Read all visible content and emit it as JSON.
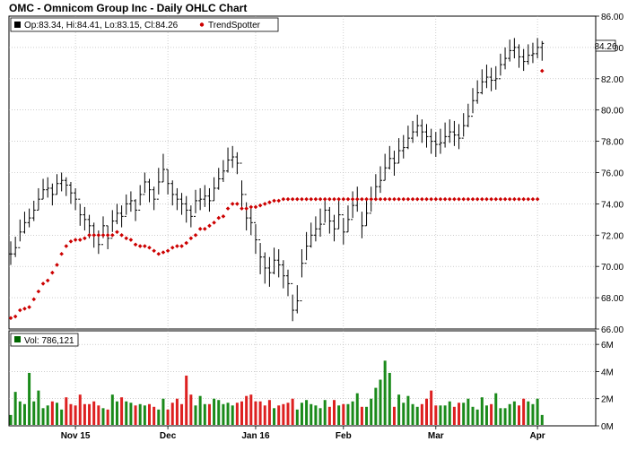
{
  "chart_data": {
    "type": "ohlc",
    "title": "OMC - Omnicom Group Inc - Daily OHLC Chart",
    "legend": {
      "ohlc_label": "Op:83.34, Hi:84.41, Lo:83.15, Cl:84.26",
      "trend_label": "TrendSpotter",
      "volume_label": "Vol: 786,121"
    },
    "last_price_label": "84.26",
    "price_axis": {
      "min": 66,
      "max": 86,
      "ticks": [
        "86.00",
        "84.00",
        "82.00",
        "80.00",
        "78.00",
        "76.00",
        "74.00",
        "72.00",
        "70.00",
        "68.00",
        "66.00"
      ]
    },
    "volume_axis": {
      "min": 0,
      "max": 7000000,
      "ticks": [
        {
          "label": "6M",
          "value": 6000000
        },
        {
          "label": "4M",
          "value": 4000000
        },
        {
          "label": "2M",
          "value": 2000000
        },
        {
          "label": "0M",
          "value": 0
        }
      ]
    },
    "date_labels": [
      {
        "label": "Nov 15",
        "index": 14
      },
      {
        "label": "Dec",
        "index": 34
      },
      {
        "label": "Jan 16",
        "index": 53
      },
      {
        "label": "Feb",
        "index": 72
      },
      {
        "label": "Mar",
        "index": 92
      },
      {
        "label": "Apr",
        "index": 114
      }
    ],
    "colors": {
      "up_volume": "#1a8a1a",
      "down_volume": "#dd2020",
      "trend": "#cc0000",
      "price_bar": "#000000",
      "volume_legend_marker": "#006600"
    },
    "series": {
      "close": [
        70.8,
        71.2,
        72.2,
        72.8,
        73.1,
        73.6,
        74.3,
        74.9,
        75.0,
        74.6,
        75.3,
        75.5,
        75.2,
        74.7,
        74.3,
        73.3,
        73.0,
        72.6,
        72.0,
        71.4,
        72.6,
        71.8,
        72.9,
        73.4,
        73.2,
        74.0,
        74.2,
        73.6,
        74.6,
        75.4,
        74.9,
        74.3,
        75.4,
        76.2,
        75.3,
        74.6,
        74.3,
        74.0,
        73.6,
        73.2,
        74.2,
        74.3,
        74.5,
        74.2,
        75.0,
        75.6,
        76.1,
        76.8,
        77.0,
        76.6,
        74.6,
        73.1,
        72.8,
        71.7,
        70.6,
        69.9,
        69.6,
        70.4,
        70.1,
        69.4,
        68.9,
        67.2,
        67.8,
        70.2,
        71.3,
        72.0,
        72.4,
        72.7,
        73.6,
        72.9,
        72.4,
        73.3,
        72.2,
        73.0,
        73.9,
        74.3,
        72.6,
        73.4,
        74.3,
        75.1,
        75.5,
        76.3,
        76.9,
        76.6,
        77.4,
        77.6,
        78.2,
        78.6,
        79.0,
        78.6,
        78.3,
        78.0,
        77.8,
        77.9,
        78.3,
        78.6,
        78.4,
        78.2,
        79.0,
        79.6,
        80.6,
        81.1,
        81.8,
        82.1,
        81.9,
        82.0,
        82.9,
        83.3,
        83.8,
        84.0,
        83.4,
        83.1,
        83.5,
        83.6,
        84.0,
        84.26
      ],
      "high": [
        71.6,
        71.9,
        73.0,
        73.5,
        73.7,
        74.2,
        75.0,
        75.6,
        75.7,
        75.3,
        75.9,
        76.0,
        75.7,
        75.4,
        75.0,
        74.0,
        73.8,
        73.3,
        72.8,
        72.3,
        73.2,
        72.6,
        73.6,
        74.0,
        73.9,
        74.6,
        74.8,
        74.3,
        75.2,
        76.0,
        75.6,
        75.1,
        76.3,
        77.2,
        76.2,
        75.5,
        75.0,
        74.7,
        74.5,
        73.9,
        74.9,
        75.0,
        75.2,
        75.0,
        75.7,
        76.3,
        76.8,
        77.6,
        77.7,
        77.3,
        75.5,
        74.1,
        73.8,
        72.7,
        71.5,
        70.9,
        70.6,
        71.2,
        71.1,
        70.4,
        69.8,
        68.2,
        68.8,
        71.1,
        72.2,
        72.8,
        73.2,
        73.7,
        74.3,
        73.8,
        73.3,
        74.2,
        73.1,
        73.9,
        74.8,
        75.1,
        73.5,
        74.3,
        75.1,
        75.9,
        76.4,
        77.2,
        77.7,
        77.4,
        78.2,
        78.4,
        79.0,
        79.3,
        79.7,
        79.4,
        79.1,
        78.8,
        78.6,
        78.8,
        79.2,
        79.4,
        79.3,
        79.1,
        79.8,
        80.4,
        81.4,
        81.9,
        82.6,
        82.9,
        82.7,
        82.8,
        83.6,
        84.0,
        84.5,
        84.6,
        84.2,
        83.9,
        84.2,
        84.3,
        84.6,
        84.41
      ],
      "low": [
        70.1,
        70.6,
        71.6,
        72.1,
        72.5,
        72.9,
        73.6,
        74.3,
        74.4,
        73.9,
        74.6,
        74.8,
        74.5,
        74.0,
        73.6,
        72.6,
        72.3,
        71.8,
        71.2,
        70.8,
        71.8,
        71.1,
        72.2,
        72.7,
        72.5,
        73.3,
        73.5,
        72.9,
        73.9,
        74.7,
        74.1,
        73.6,
        74.6,
        75.4,
        74.6,
        73.9,
        73.6,
        73.3,
        72.8,
        72.5,
        73.4,
        73.6,
        73.8,
        73.5,
        74.2,
        74.9,
        75.4,
        76.0,
        76.3,
        75.9,
        73.8,
        72.3,
        72.0,
        70.8,
        69.5,
        68.9,
        68.7,
        69.5,
        69.3,
        68.6,
        68.1,
        66.5,
        67.0,
        69.3,
        70.4,
        71.2,
        71.6,
        71.9,
        72.8,
        72.1,
        71.6,
        72.4,
        71.4,
        72.2,
        73.1,
        73.5,
        71.8,
        72.6,
        73.5,
        74.3,
        74.7,
        75.5,
        76.2,
        75.8,
        76.6,
        76.9,
        77.5,
        77.9,
        78.3,
        77.9,
        77.6,
        77.2,
        77.0,
        77.2,
        77.6,
        77.9,
        77.7,
        77.5,
        78.3,
        78.9,
        79.8,
        80.4,
        81.0,
        81.4,
        81.2,
        81.3,
        82.2,
        82.6,
        83.1,
        83.3,
        82.7,
        82.5,
        82.9,
        83.0,
        83.3,
        83.15
      ],
      "trend": [
        66.7,
        66.8,
        67.2,
        67.3,
        67.4,
        67.9,
        68.4,
        68.9,
        69.1,
        69.6,
        70.1,
        70.8,
        71.3,
        71.6,
        71.7,
        71.7,
        71.8,
        72.0,
        72.0,
        72.0,
        72.0,
        72.0,
        72.0,
        72.2,
        72.0,
        71.8,
        71.7,
        71.4,
        71.3,
        71.3,
        71.2,
        71.0,
        70.8,
        70.9,
        71.0,
        71.2,
        71.3,
        71.3,
        71.5,
        71.8,
        72.0,
        72.4,
        72.4,
        72.6,
        72.8,
        73.1,
        73.2,
        73.7,
        74.0,
        74.0,
        73.7,
        73.7,
        73.8,
        73.8,
        73.9,
        74.0,
        74.1,
        74.2,
        74.2,
        74.3,
        74.3,
        74.3,
        74.3,
        74.3,
        74.3,
        74.3,
        74.3,
        74.3,
        74.3,
        74.3,
        74.3,
        74.3,
        74.3,
        74.3,
        74.3,
        74.3,
        74.3,
        74.3,
        74.3,
        74.3,
        74.3,
        74.3,
        74.3,
        74.3,
        74.3,
        74.3,
        74.3,
        74.3,
        74.3,
        74.3,
        74.3,
        74.3,
        74.3,
        74.3,
        74.3,
        74.3,
        74.3,
        74.3,
        74.3,
        74.3,
        74.3,
        74.3,
        74.3,
        74.3,
        74.3,
        74.3,
        74.3,
        74.3,
        74.3,
        74.3,
        74.3,
        74.3,
        74.3,
        74.3,
        74.3,
        82.5
      ],
      "volume": [
        0.8,
        2.5,
        1.8,
        1.6,
        3.9,
        1.8,
        2.6,
        1.3,
        1.5,
        1.8,
        1.7,
        1.2,
        2.1,
        1.6,
        1.5,
        2.3,
        1.6,
        1.6,
        1.8,
        1.5,
        1.3,
        1.2,
        2.3,
        1.8,
        2.1,
        1.8,
        1.7,
        1.5,
        1.6,
        1.5,
        1.6,
        1.4,
        1.2,
        2.0,
        1.2,
        1.7,
        2.0,
        1.6,
        3.7,
        2.3,
        1.5,
        2.2,
        1.6,
        1.6,
        2.0,
        1.9,
        1.6,
        1.7,
        1.5,
        1.7,
        1.8,
        2.2,
        2.3,
        1.8,
        1.8,
        1.5,
        1.9,
        1.3,
        1.5,
        1.6,
        1.7,
        2.0,
        1.2,
        1.7,
        1.9,
        1.6,
        1.5,
        1.3,
        1.9,
        1.4,
        1.9,
        1.5,
        1.6,
        1.6,
        1.8,
        2.4,
        1.4,
        1.4,
        2.0,
        2.8,
        3.4,
        4.8,
        3.9,
        1.4,
        2.3,
        1.7,
        2.2,
        1.6,
        1.4,
        1.6,
        2.0,
        2.6,
        1.5,
        1.5,
        1.5,
        1.8,
        1.4,
        1.7,
        1.7,
        2.0,
        1.4,
        1.2,
        2.1,
        1.5,
        1.6,
        2.4,
        1.3,
        1.3,
        1.6,
        1.8,
        1.5,
        2.0,
        1.8,
        1.6,
        2.0,
        0.8
      ]
    }
  }
}
